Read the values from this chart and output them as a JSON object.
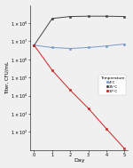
{
  "title": "",
  "xlabel": "Day",
  "ylabel": "Titer, CFU/mL",
  "series": [
    {
      "label": "4°C",
      "color": "#7799cc",
      "marker": "s",
      "days": [
        0,
        1,
        2,
        3,
        4,
        5
      ],
      "values": [
        6000000.0,
        4500000.0,
        4000000.0,
        4500000.0,
        5500000.0,
        7000000.0
      ]
    },
    {
      "label": "25°C",
      "color": "#444444",
      "marker": "s",
      "days": [
        0,
        1,
        2,
        3,
        4,
        5
      ],
      "values": [
        6000000.0,
        180000000.0,
        230000000.0,
        240000000.0,
        240000000.0,
        230000000.0
      ]
    },
    {
      "label": "37°C",
      "color": "#cc2222",
      "marker": "s",
      "days": [
        0,
        1,
        2,
        3,
        4,
        5
      ],
      "values": [
        6000000.0,
        250000.0,
        20000.0,
        2000.0,
        150.0,
        12.0
      ]
    }
  ],
  "ylim_log": [
    10.0,
    1000000000.0
  ],
  "xticks": [
    0,
    1,
    2,
    3,
    4,
    5
  ],
  "ytick_values": [
    100.0,
    1000.0,
    10000.0,
    100000.0,
    1000000.0,
    10000000.0,
    100000000.0
  ],
  "legend_title": "Temperature",
  "legend_labels": [
    "4°C",
    "25°C",
    "37°C"
  ],
  "legend_colors": [
    "#7799cc",
    "#444444",
    "#cc2222"
  ],
  "background_color": "#f0f0f0"
}
